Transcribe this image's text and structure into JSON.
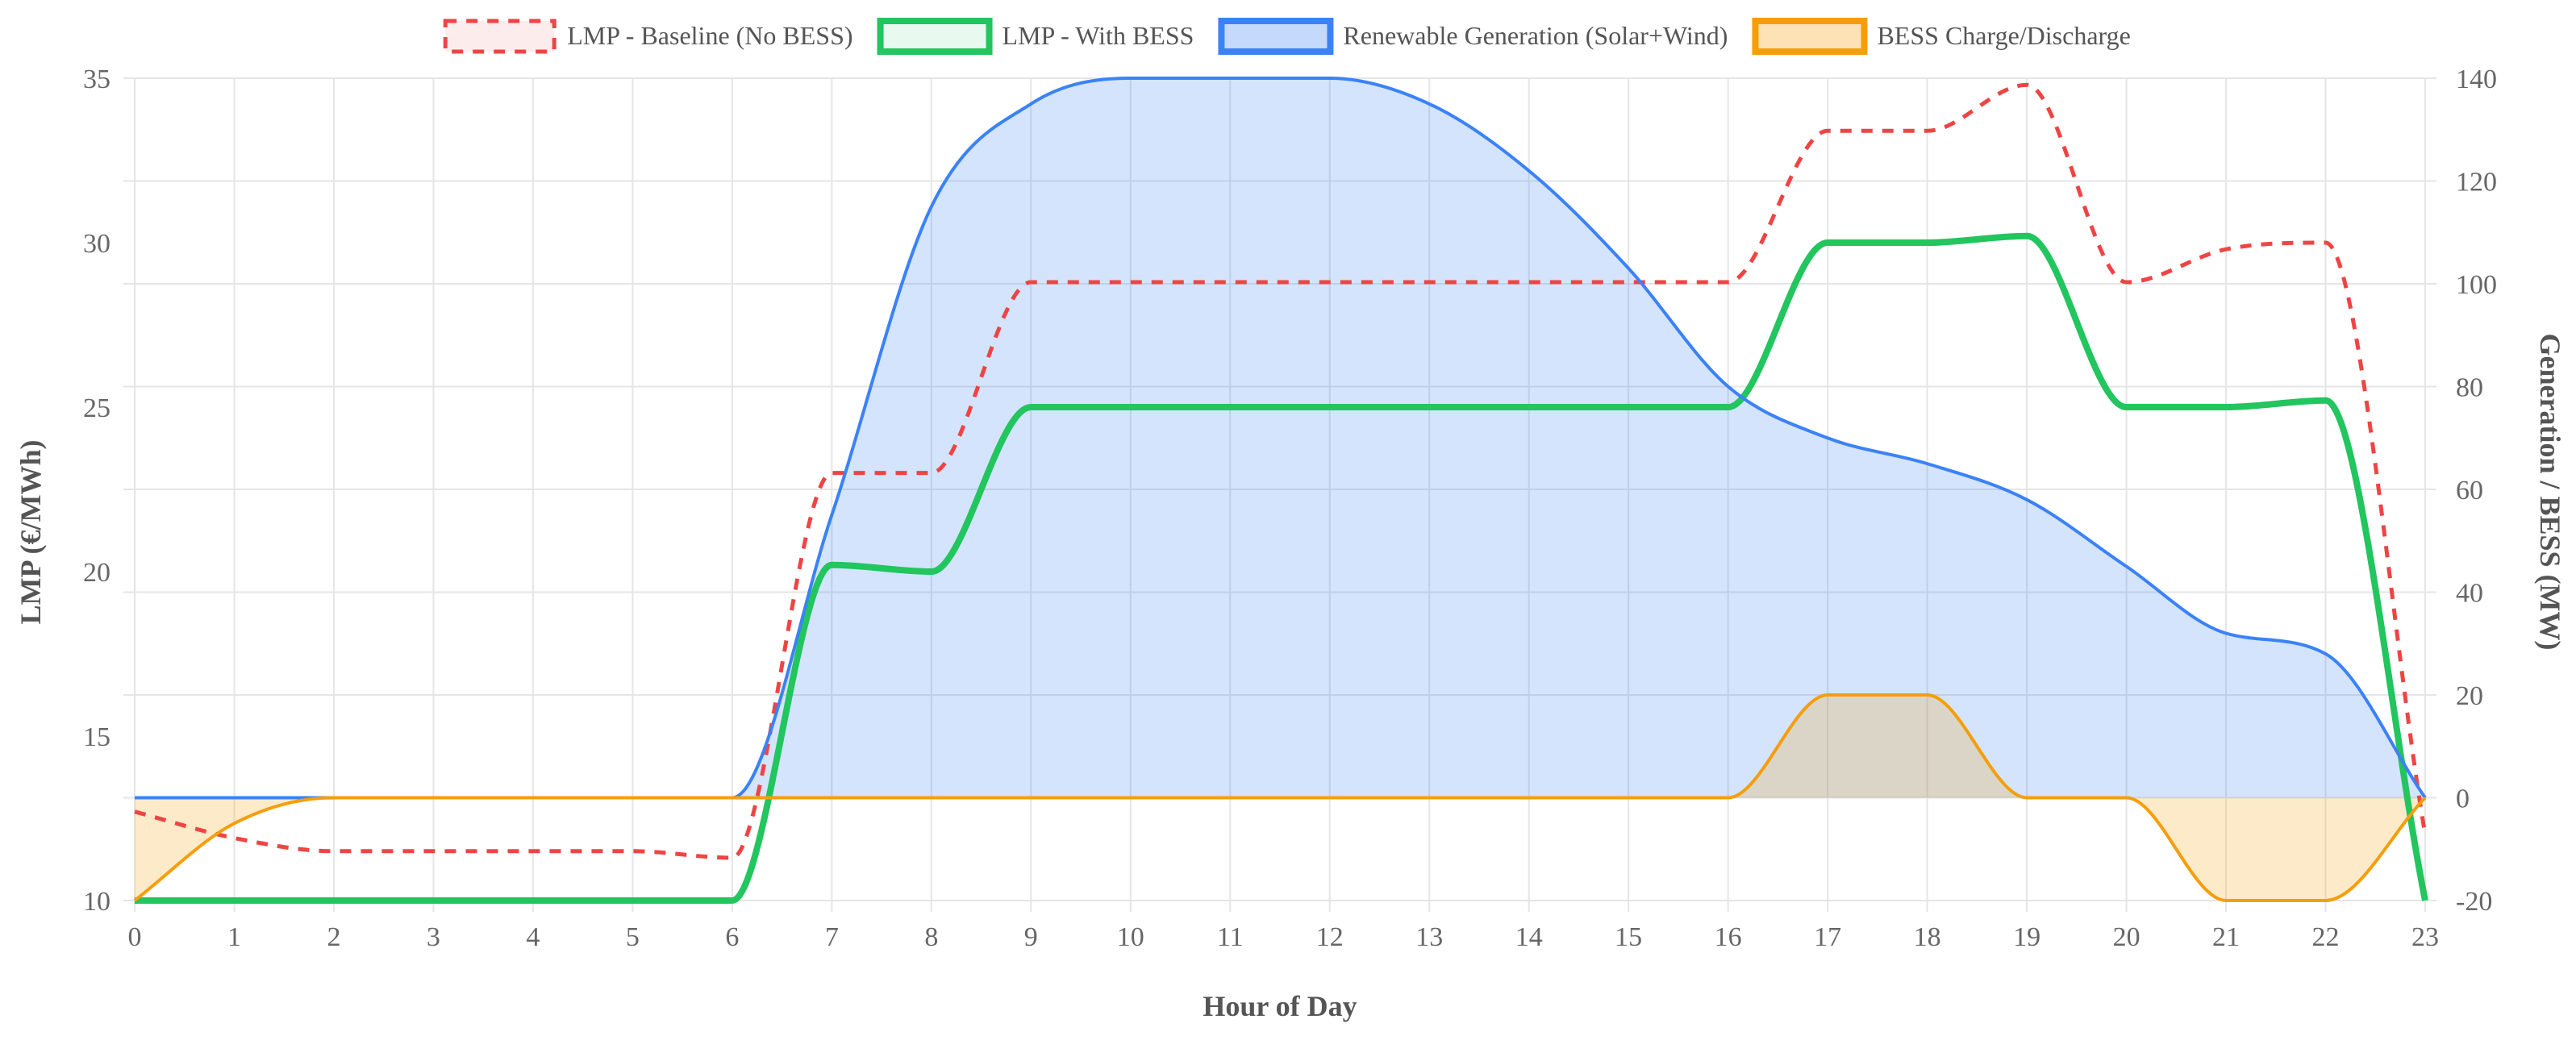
{
  "chart_data": {
    "type": "line",
    "xlabel": "Hour of Day",
    "y_left_label": "LMP (€/MWh)",
    "y_right_label": "Generation / BESS (MW)",
    "x": [
      0,
      1,
      2,
      3,
      4,
      5,
      6,
      7,
      8,
      9,
      10,
      11,
      12,
      13,
      14,
      15,
      16,
      17,
      18,
      19,
      20,
      21,
      22,
      23
    ],
    "x_ticks": [
      "0",
      "1",
      "2",
      "3",
      "4",
      "5",
      "6",
      "7",
      "8",
      "9",
      "10",
      "11",
      "12",
      "13",
      "14",
      "15",
      "16",
      "17",
      "18",
      "19",
      "20",
      "21",
      "22",
      "23"
    ],
    "y_left_range": [
      10,
      35
    ],
    "y_left_ticks": [
      "10",
      "15",
      "20",
      "25",
      "30",
      "35"
    ],
    "y_right_range": [
      -20,
      140
    ],
    "y_right_ticks": [
      "-20",
      "0",
      "20",
      "40",
      "60",
      "80",
      "100",
      "120",
      "140"
    ],
    "grid": true,
    "legend_position": "top",
    "series": [
      {
        "name": "LMP - Baseline (No BESS)",
        "axis": "left",
        "color": "#ef4444",
        "style": "dashed",
        "fill": "none",
        "values": [
          12.7,
          11.9,
          11.5,
          11.5,
          11.5,
          11.5,
          11.3,
          23.0,
          23.0,
          28.8,
          28.8,
          28.8,
          28.8,
          28.8,
          28.8,
          28.8,
          28.8,
          33.4,
          33.4,
          34.8,
          28.8,
          29.8,
          30.0,
          12.0
        ]
      },
      {
        "name": "LMP - With BESS",
        "axis": "left",
        "color": "#22c55e",
        "style": "solid",
        "fill": "none",
        "values": [
          10,
          10,
          10,
          10,
          10,
          10,
          10,
          20.2,
          20.0,
          25.0,
          25.0,
          25.0,
          25.0,
          25.0,
          25.0,
          25.0,
          25.0,
          30.0,
          30.0,
          30.2,
          25.0,
          25.0,
          25.2,
          10.0
        ]
      },
      {
        "name": "Renewable Generation (Solar+Wind)",
        "axis": "right",
        "color": "#3b82f6",
        "style": "solid",
        "fill": "area",
        "values": [
          0,
          0,
          0,
          0,
          0,
          0,
          0,
          55,
          115,
          135,
          140,
          140,
          140,
          135,
          122,
          103,
          80,
          70,
          65,
          58,
          45,
          32,
          28,
          0
        ]
      },
      {
        "name": "BESS Charge/Discharge",
        "axis": "right",
        "color": "#f59e0b",
        "style": "solid",
        "fill": "area",
        "values": [
          -20,
          -5,
          0,
          0,
          0,
          0,
          0,
          0,
          0,
          0,
          0,
          0,
          0,
          0,
          0,
          0,
          0,
          20,
          20,
          0,
          0,
          -20,
          -20,
          0
        ]
      }
    ]
  }
}
